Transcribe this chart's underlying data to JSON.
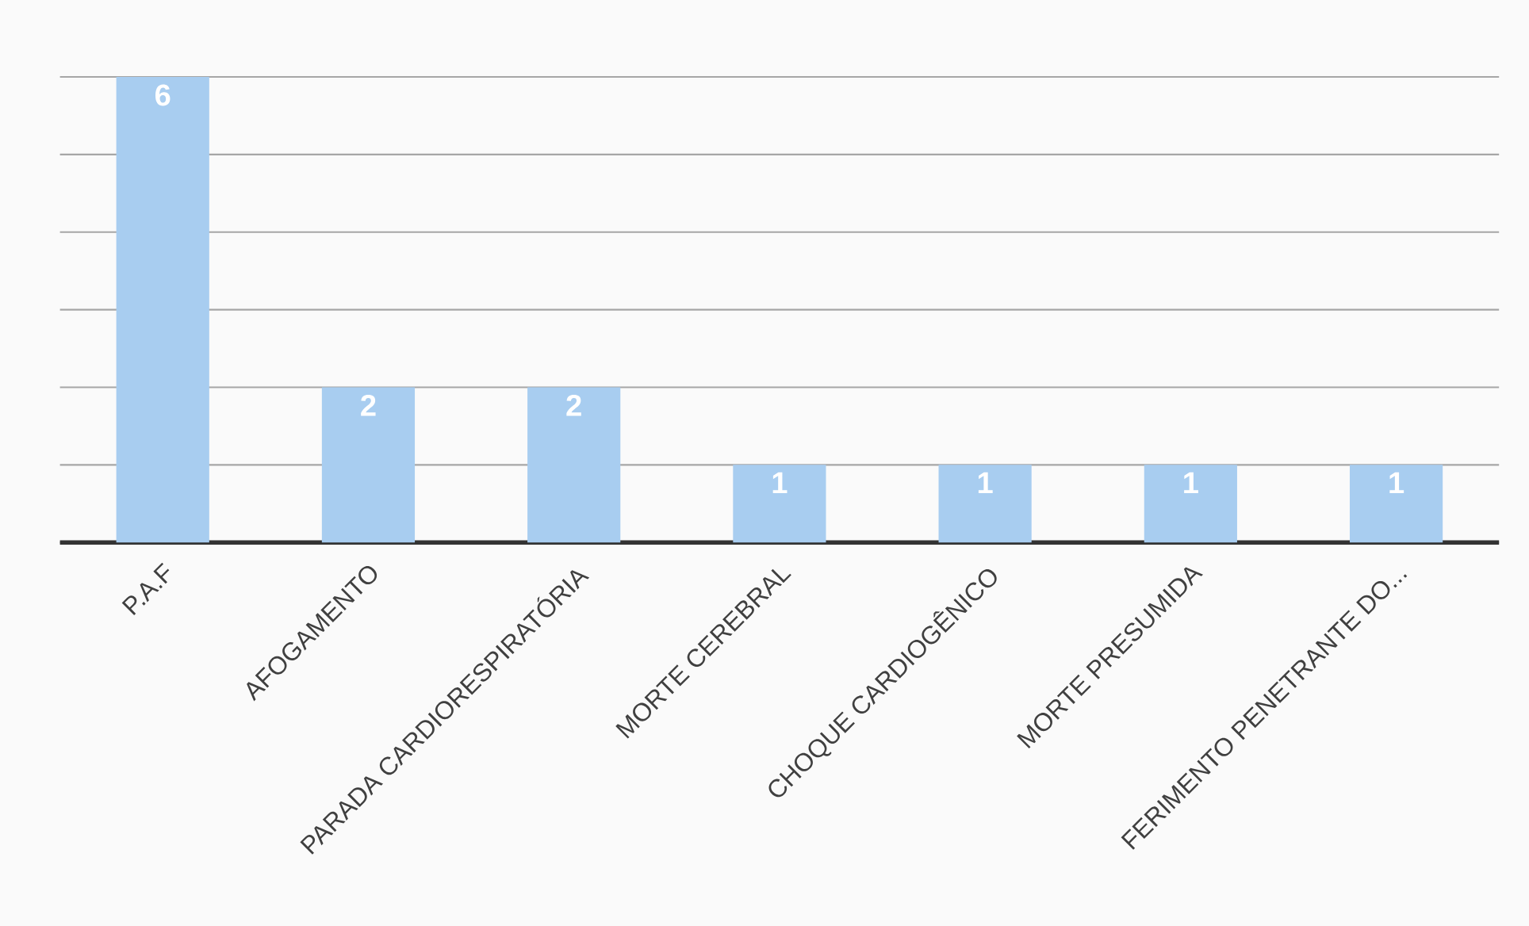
{
  "chart_data": {
    "type": "bar",
    "categories": [
      "P.A.F",
      "AFOGAMENTO",
      "PARADA CARDIORESPIRATÓRIA",
      "MORTE CEREBRAL",
      "CHOQUE CARDIOGÊNICO",
      "MORTE PRESUMIDA",
      "FERIMENTO PENETRANTE DO..."
    ],
    "values": [
      6,
      2,
      2,
      1,
      1,
      1,
      1
    ],
    "color": "#a8cdf0",
    "ylim": [
      0,
      6
    ],
    "yticks": [
      {
        "value": 0,
        "label": null
      },
      {
        "value": 1,
        "label": null
      },
      {
        "value": 2,
        "label": null
      },
      {
        "value": 3,
        "label": null
      },
      {
        "value": 4,
        "label": null
      },
      {
        "value": 5,
        "label": null
      },
      {
        "value": 6,
        "label": null
      }
    ],
    "tick_labels": "x",
    "grid": "y",
    "data_labels": true
  }
}
